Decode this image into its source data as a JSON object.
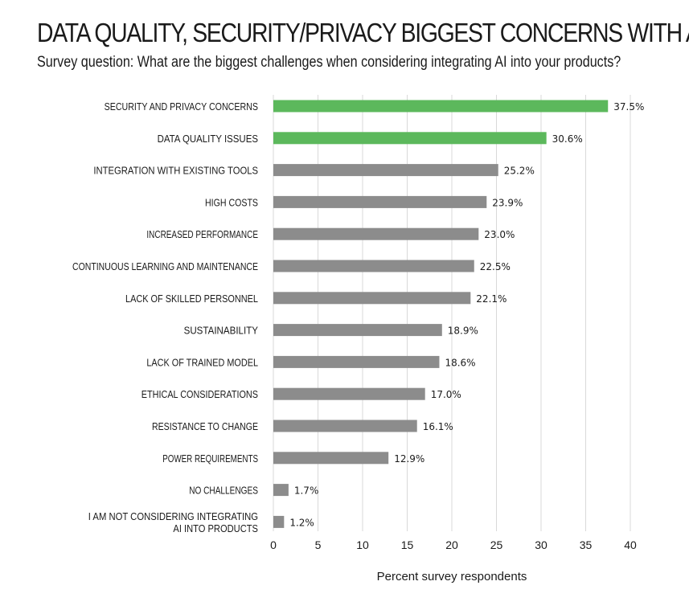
{
  "chart_data": {
    "type": "bar",
    "orientation": "horizontal",
    "title": "DATA QUALITY, SECURITY/PRIVACY BIGGEST CONCERNS WITH AI",
    "subtitle": "Survey question: What are the biggest challenges when considering integrating AI into your products?",
    "xlabel": "Percent survey respondents",
    "ylabel": "",
    "xlim": [
      0,
      40
    ],
    "xticks": [
      0,
      5,
      10,
      15,
      20,
      25,
      30,
      35,
      40
    ],
    "grid": true,
    "categories": [
      [
        "SECURITY AND PRIVACY CONCERNS"
      ],
      [
        "DATA QUALITY ISSUES"
      ],
      [
        "INTEGRATION WITH EXISTING TOOLS"
      ],
      [
        "HIGH COSTS"
      ],
      [
        "INCREASED PERFORMANCE"
      ],
      [
        "CONTINUOUS LEARNING AND MAINTENANCE"
      ],
      [
        "LACK OF SKILLED PERSONNEL"
      ],
      [
        "SUSTAINABILITY"
      ],
      [
        "LACK OF TRAINED MODEL"
      ],
      [
        "ETHICAL CONSIDERATIONS"
      ],
      [
        "RESISTANCE TO CHANGE"
      ],
      [
        "POWER REQUIREMENTS"
      ],
      [
        "NO CHALLENGES"
      ],
      [
        "I AM NOT CONSIDERING INTEGRATING",
        "AI INTO PRODUCTS"
      ]
    ],
    "values": [
      37.5,
      30.6,
      25.2,
      23.9,
      23.0,
      22.5,
      22.1,
      18.9,
      18.6,
      17.0,
      16.1,
      12.9,
      1.7,
      1.2
    ],
    "value_labels": [
      "37.5%",
      "30.6%",
      "25.2%",
      "23.9%",
      "23.0%",
      "22.5%",
      "22.1%",
      "18.9%",
      "18.6%",
      "17.0%",
      "16.1%",
      "12.9%",
      "1.7%",
      "1.2%"
    ],
    "highlight_color": "#5cb85c",
    "default_color": "#8c8c8c",
    "highlighted": [
      true,
      true,
      false,
      false,
      false,
      false,
      false,
      false,
      false,
      false,
      false,
      false,
      false,
      false
    ],
    "grid_color": "#d9d9d9"
  }
}
